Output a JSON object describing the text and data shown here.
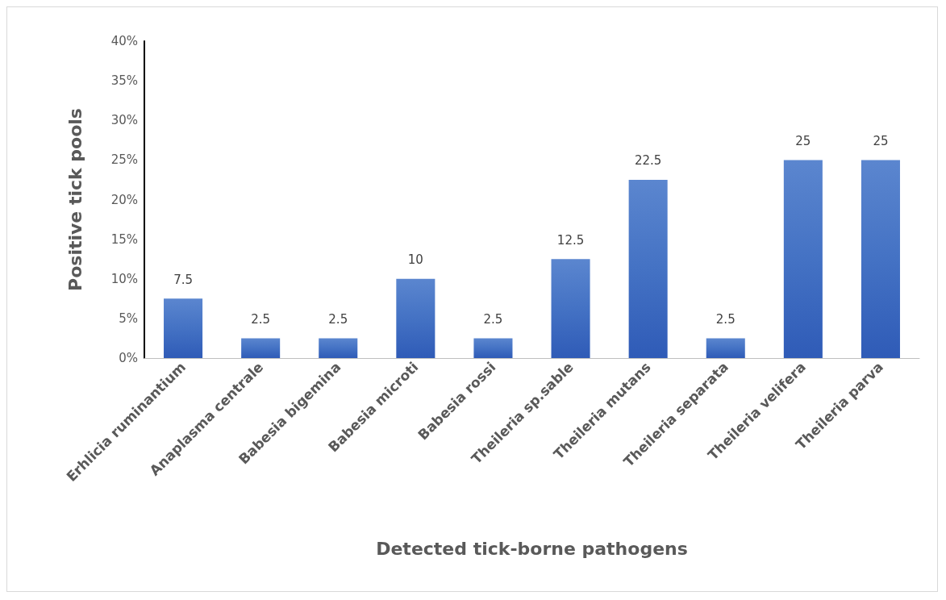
{
  "chart_data": {
    "type": "bar",
    "xlabel": "Detected tick-borne pathogens",
    "ylabel": "Positive tick pools",
    "categories": [
      "Erhlicia ruminantium",
      "Anaplasma centrale",
      "Babesia bigemina",
      "Babesia microti",
      "Babesia rossi",
      "Theileria sp.sable",
      "Theileria mutans",
      "Theileria separata",
      "Theileria velifera",
      "Theileria parva"
    ],
    "values": [
      7.5,
      2.5,
      2.5,
      10,
      2.5,
      12.5,
      22.5,
      2.5,
      25,
      25
    ],
    "color": "#4472c4",
    "ylim": [
      0,
      40
    ],
    "yticks": [
      {
        "value": 0,
        "label": "0%"
      },
      {
        "value": 5,
        "label": "5%"
      },
      {
        "value": 10,
        "label": "10%"
      },
      {
        "value": 15,
        "label": "15%"
      },
      {
        "value": 20,
        "label": "20%"
      },
      {
        "value": 25,
        "label": "25%"
      },
      {
        "value": 30,
        "label": "30%"
      },
      {
        "value": 35,
        "label": "35%"
      },
      {
        "value": 40,
        "label": "40%"
      }
    ],
    "data_labels": true,
    "grid": false
  }
}
